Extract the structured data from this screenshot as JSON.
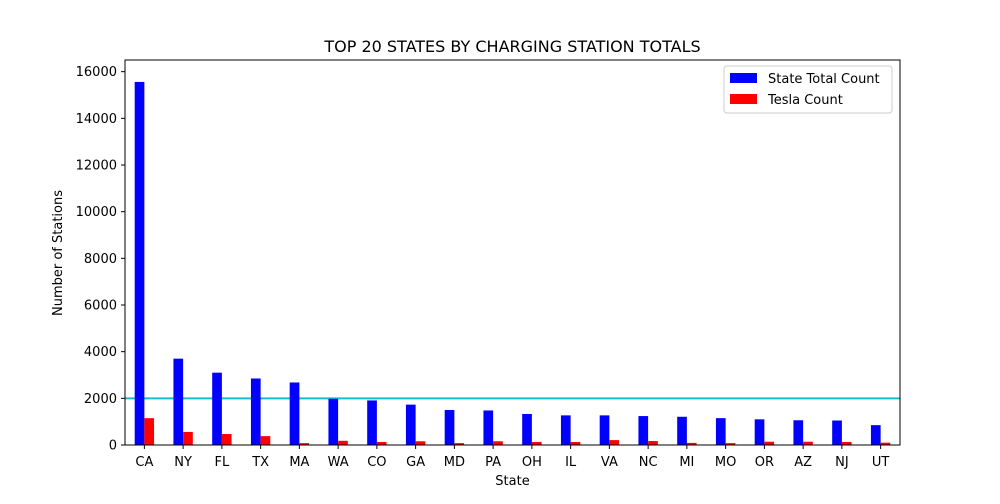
{
  "chart_data": {
    "type": "bar",
    "title": "TOP 20 STATES BY CHARGING STATION TOTALS",
    "xlabel": "State",
    "ylabel": "Number of Stations",
    "ylim": [
      0,
      16500
    ],
    "yticks": [
      0,
      2000,
      4000,
      6000,
      8000,
      10000,
      12000,
      14000,
      16000
    ],
    "grid": false,
    "legend_position": "top-right",
    "categories": [
      "CA",
      "NY",
      "FL",
      "TX",
      "MA",
      "WA",
      "CO",
      "GA",
      "MD",
      "PA",
      "OH",
      "IL",
      "VA",
      "NC",
      "MI",
      "MO",
      "OR",
      "AZ",
      "NJ",
      "UT"
    ],
    "series": [
      {
        "name": "State Total Count",
        "color": "#0000ff",
        "values": [
          15560,
          3700,
          3100,
          2850,
          2680,
          1980,
          1910,
          1730,
          1500,
          1480,
          1330,
          1270,
          1270,
          1240,
          1210,
          1150,
          1100,
          1060,
          1050,
          850
        ]
      },
      {
        "name": "Tesla Count",
        "color": "#ff0000",
        "values": [
          1150,
          560,
          470,
          380,
          80,
          180,
          130,
          160,
          80,
          160,
          130,
          130,
          210,
          170,
          90,
          80,
          140,
          140,
          130,
          100
        ]
      }
    ],
    "reference_line": {
      "value": 2000,
      "color": "#17becf"
    }
  }
}
